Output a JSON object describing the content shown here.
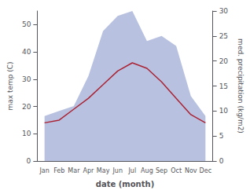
{
  "chart_data": {
    "type": "line",
    "xlabel": "date (month)",
    "ylabel": "max temp (C)",
    "y2label": "med. precipitation (kg/m2)",
    "categories": [
      "Jan",
      "Feb",
      "Mar",
      "Apr",
      "May",
      "Jun",
      "Jul",
      "Aug",
      "Sep",
      "Oct",
      "Nov",
      "Dec"
    ],
    "series": [
      {
        "type": "area",
        "color": "#b0bbdd",
        "axis": "y2",
        "values": [
          9,
          10,
          11,
          17,
          26,
          29,
          30,
          24,
          25,
          23,
          13,
          9
        ]
      },
      {
        "type": "line",
        "color": "#aa2233",
        "values": [
          14,
          15,
          19,
          23,
          28,
          33,
          36,
          34,
          29,
          23,
          17,
          14
        ]
      }
    ],
    "ylim": [
      0,
      55
    ],
    "yticks": [
      0,
      10,
      20,
      30,
      40,
      50
    ],
    "y2lim": [
      0,
      30
    ],
    "y2ticks": [
      0,
      5,
      10,
      15,
      20,
      25,
      30
    ],
    "grid": false
  }
}
